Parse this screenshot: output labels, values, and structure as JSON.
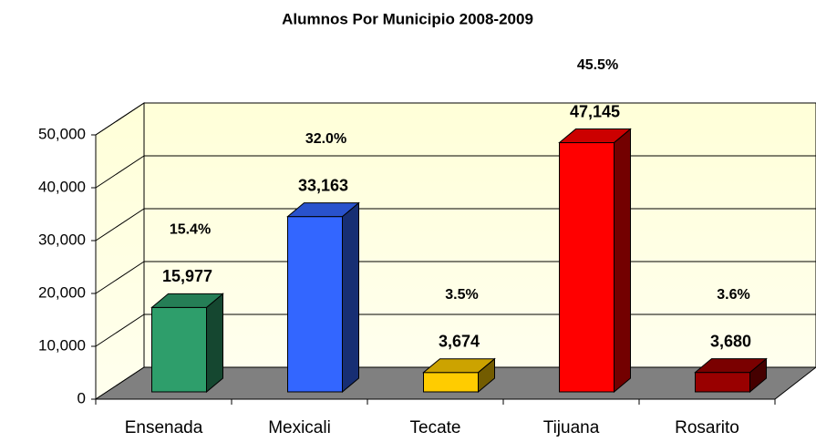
{
  "chart_data": {
    "type": "bar3d",
    "title": "Alumnos Por Municipio 2008-2009",
    "categories": [
      "Ensenada",
      "Mexicali",
      "Tecate",
      "Tijuana",
      "Rosarito"
    ],
    "values": [
      15977,
      33163,
      3674,
      47145,
      3680
    ],
    "value_labels": [
      "15,977",
      "33,163",
      "3,674",
      "47,145",
      "3,680"
    ],
    "share_labels": [
      "15.4%",
      "32.0%",
      "3.5%",
      "45.5%",
      "3.6%"
    ],
    "colors": [
      "#2e9e6b",
      "#3366ff",
      "#ffcc00",
      "#ff0000",
      "#990000"
    ],
    "ylim": [
      0,
      50000
    ],
    "yticks": [
      0,
      {
        "value": 10000,
        "label": "10,000"
      },
      {
        "value": 20000,
        "label": "20,000"
      },
      {
        "value": 30000,
        "label": "30,000"
      },
      {
        "value": 40000,
        "label": "40,000"
      },
      {
        "value": 50000,
        "label": "50,000"
      }
    ],
    "grid": true
  }
}
